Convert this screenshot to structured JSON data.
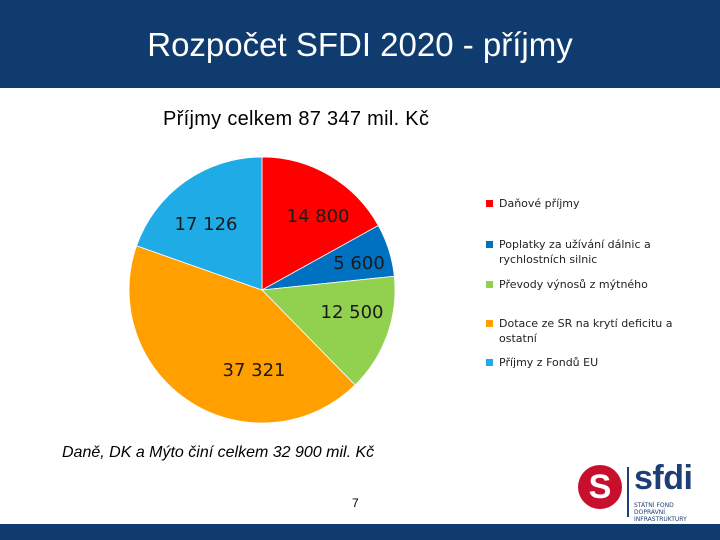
{
  "header": {
    "title": "Rozpočet SFDI 2020 - příjmy"
  },
  "chart_data": {
    "type": "pie",
    "title": "Příjmy celkem 87 347 mil. Kč",
    "slices": [
      {
        "label": "Daňové příjmy",
        "value": 14800,
        "display": "14 800",
        "color": "#ff0000"
      },
      {
        "label": "Poplatky za užívání dálnic a rychlostních silnic",
        "value": 5600,
        "display": "5 600",
        "color": "#0070c0"
      },
      {
        "label": "Převody výnosů z mýtného",
        "value": 12500,
        "display": "12 500",
        "color": "#92d050"
      },
      {
        "label": "Dotace ze SR na krytí deficitu a ostatní",
        "value": 37321,
        "display": "37 321",
        "color": "#ffa000"
      },
      {
        "label": "Příjmy z Fondů EU",
        "value": 17126,
        "display": "17 126",
        "color": "#1eabe6"
      }
    ],
    "legend_position": "right"
  },
  "note": "Daně, DK a Mýto činí celkem 32 900 mil. Kč",
  "page_number": "7",
  "logo": {
    "mark": "S",
    "text": "sfdi",
    "subtitle_line1": "STÁTNÍ FOND DOPRAVNÍ",
    "subtitle_line2": "INFRASTRUKTURY"
  }
}
